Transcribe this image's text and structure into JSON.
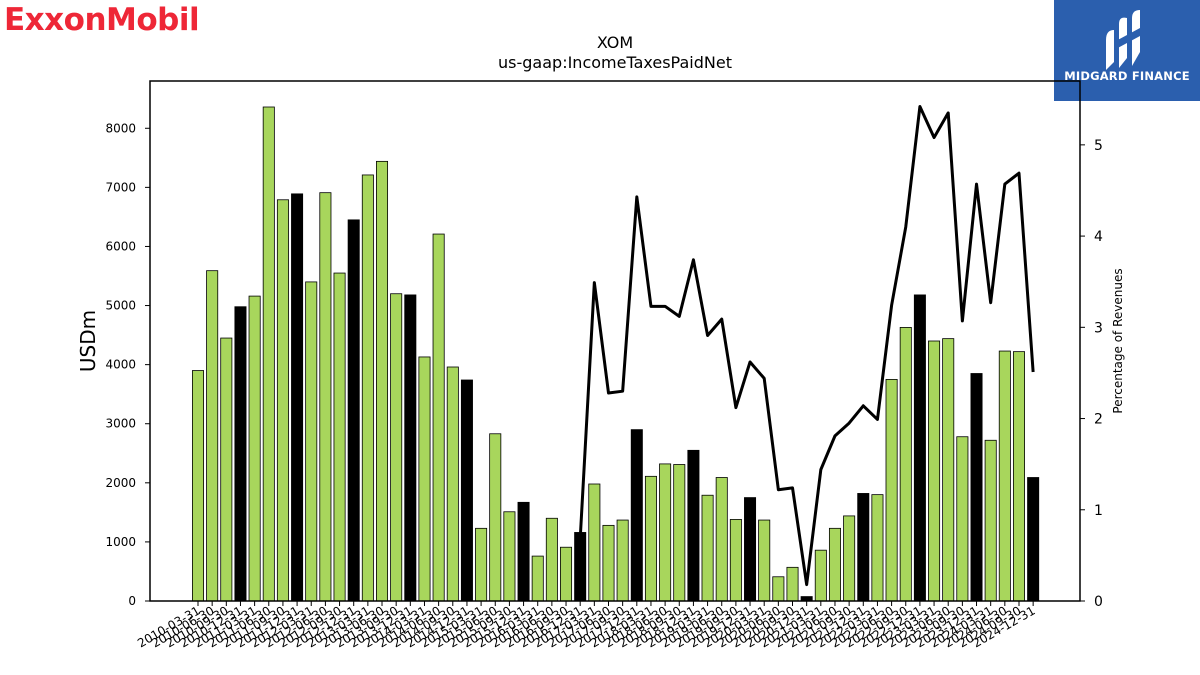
{
  "brand_left": {
    "text": "ExxonMobil",
    "color": "#ee2737"
  },
  "brand_right": {
    "text": "MIDGARD FINANCE",
    "bg_color": "#2b5fae"
  },
  "chart_data": {
    "type": "bar",
    "title": "XOM",
    "subtitle": "us-gaap:IncomeTaxesPaidNet",
    "ylabel": "USDm",
    "ylabel_right": "Percentage of Revenues",
    "ylim": [
      0,
      8800
    ],
    "ylim_right": [
      0,
      5.7
    ],
    "yticks": [
      0,
      1000,
      2000,
      3000,
      4000,
      5000,
      6000,
      7000,
      8000
    ],
    "yticks_right": [
      0,
      1,
      2,
      3,
      4,
      5
    ],
    "grid": false,
    "colors": {
      "quarter": "#a8d65c",
      "annual": "#000000",
      "line": "#000000"
    },
    "categories": [
      "2010-03-31",
      "2010-06-30",
      "2010-09-30",
      "2010-12-31",
      "2011-03-31",
      "2011-06-30",
      "2011-09-30",
      "2011-12-31",
      "2012-03-31",
      "2012-06-30",
      "2012-09-30",
      "2012-12-31",
      "2013-03-31",
      "2013-06-30",
      "2013-09-30",
      "2013-12-31",
      "2014-03-31",
      "2014-06-30",
      "2014-09-30",
      "2014-12-31",
      "2015-03-31",
      "2015-06-30",
      "2015-09-30",
      "2015-12-31",
      "2016-03-31",
      "2016-06-30",
      "2016-09-30",
      "2016-12-31",
      "2017-03-31",
      "2017-06-30",
      "2017-09-30",
      "2017-12-31",
      "2018-03-31",
      "2018-06-30",
      "2018-09-30",
      "2018-12-31",
      "2019-03-31",
      "2019-06-30",
      "2019-09-30",
      "2019-12-31",
      "2020-03-31",
      "2020-06-30",
      "2020-09-30",
      "2020-12-31",
      "2021-03-31",
      "2021-06-30",
      "2021-09-30",
      "2021-12-31",
      "2022-03-31",
      "2022-06-30",
      "2022-09-30",
      "2022-12-31",
      "2023-03-31",
      "2023-06-30",
      "2023-09-30",
      "2023-12-31",
      "2024-03-31",
      "2024-06-30",
      "2024-09-30",
      "2024-12-31"
    ],
    "series": [
      {
        "name": "",
        "values": [
          3900,
          5590,
          4450,
          4980,
          5160,
          8360,
          6790,
          6890,
          5400,
          6910,
          5550,
          6450,
          7210,
          7440,
          5200,
          5180,
          4130,
          6210,
          3960,
          3740,
          1230,
          2830,
          1510,
          1670,
          760,
          1400,
          910,
          1160,
          1980,
          1280,
          1370,
          2900,
          2110,
          2320,
          2310,
          2550,
          1790,
          2090,
          1380,
          1750,
          1370,
          410,
          570,
          75,
          860,
          1230,
          1440,
          1820,
          1800,
          3750,
          4630,
          5180,
          4400,
          4440,
          2780,
          3850,
          2720,
          4230,
          4220,
          2090
        ],
        "annual": [
          false,
          false,
          false,
          true,
          false,
          false,
          false,
          true,
          false,
          false,
          false,
          true,
          false,
          false,
          false,
          true,
          false,
          false,
          false,
          true,
          false,
          false,
          false,
          true,
          false,
          false,
          false,
          true,
          false,
          false,
          false,
          true,
          false,
          false,
          false,
          true,
          false,
          false,
          false,
          true,
          false,
          false,
          false,
          true,
          false,
          false,
          false,
          true,
          false,
          false,
          false,
          true,
          false,
          false,
          false,
          true,
          false,
          false,
          false,
          true
        ]
      }
    ],
    "line_series": {
      "name": "",
      "x_start": "2016-12-31",
      "values": [
        0.68,
        3.49,
        2.28,
        2.3,
        4.43,
        3.23,
        3.23,
        3.12,
        3.74,
        2.91,
        3.09,
        2.12,
        2.62,
        2.44,
        1.22,
        1.24,
        0.18,
        1.44,
        1.81,
        1.95,
        2.14,
        1.99,
        3.24,
        4.1,
        5.42,
        5.08,
        5.35,
        3.07,
        4.57,
        3.27,
        4.57,
        4.69,
        2.51
      ]
    }
  }
}
